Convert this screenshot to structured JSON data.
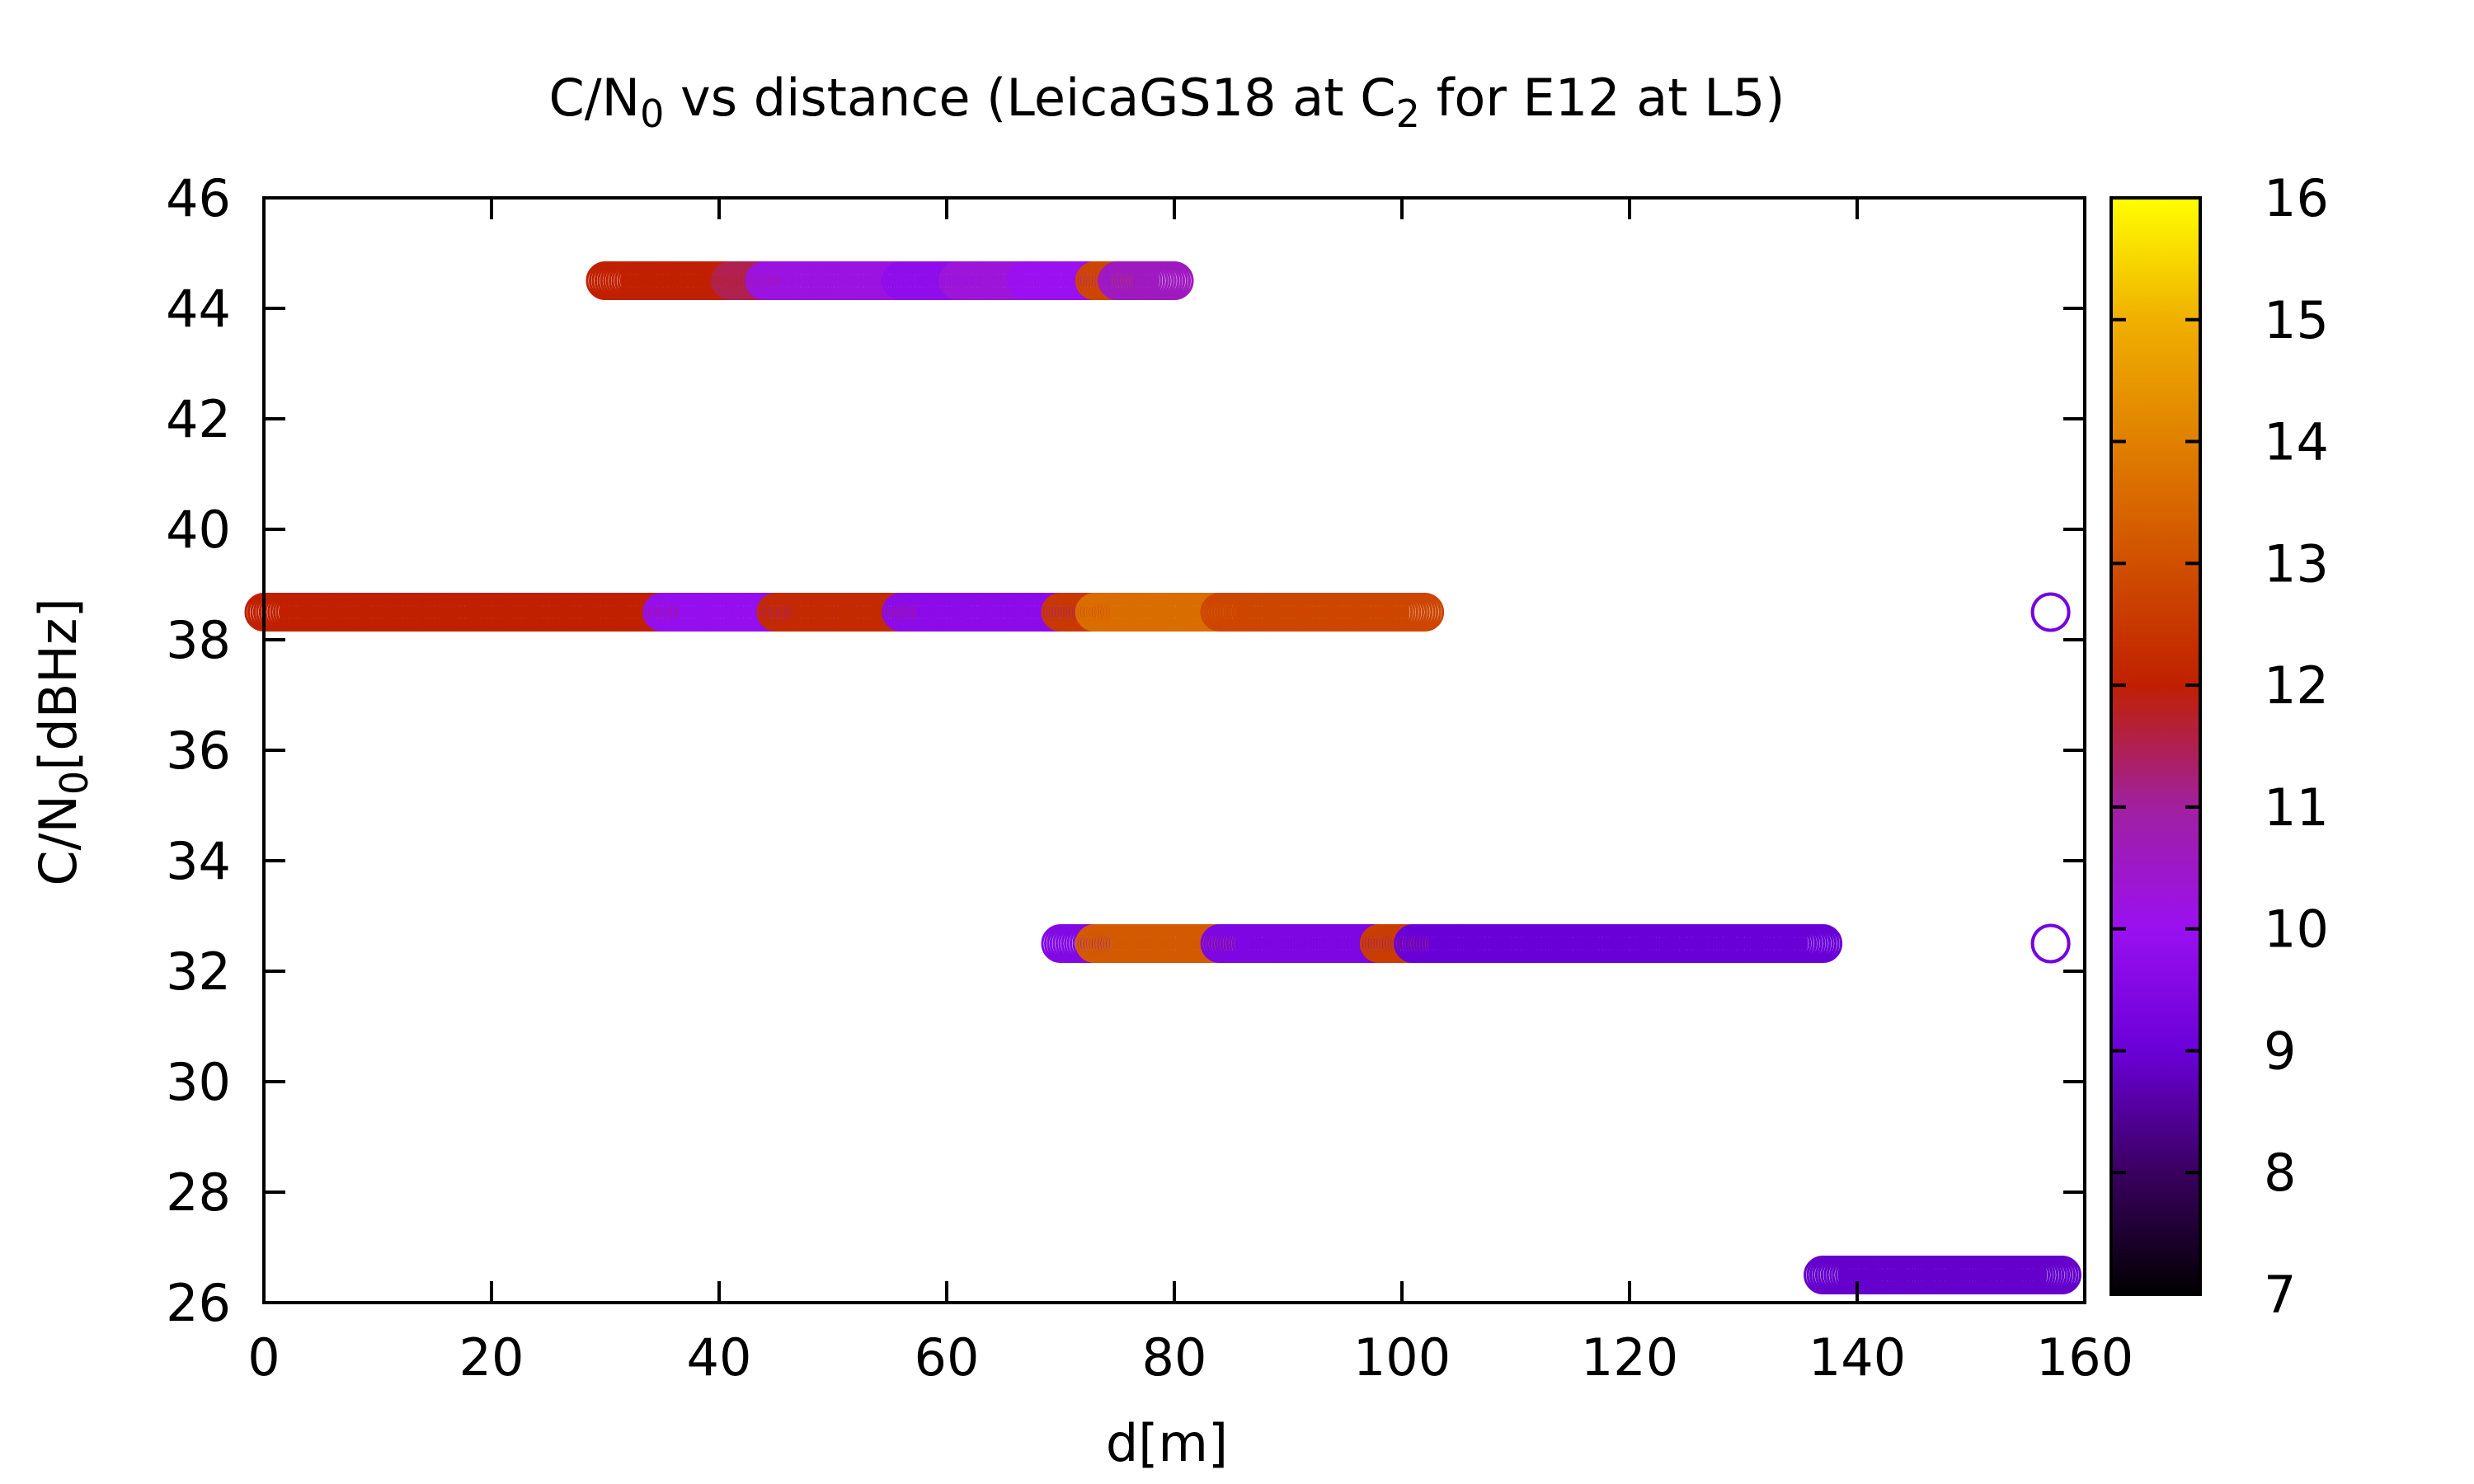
{
  "chart_data": {
    "type": "scatter",
    "title": {
      "pre": "C/N",
      "sub1": "0",
      "mid": " vs distance (LeicaGS18 at C",
      "sub2": "2",
      "post": " for E12 at L5)"
    },
    "xlabel": "d[m]",
    "ylabel": {
      "pre": "C/N",
      "sub": "0",
      "post": "[dBHz]"
    },
    "xlim": [
      0,
      160
    ],
    "ylim": [
      26,
      46
    ],
    "x_ticks": [
      "0",
      "20",
      "40",
      "60",
      "80",
      "100",
      "120",
      "140",
      "160"
    ],
    "y_ticks": [
      "26",
      "28",
      "30",
      "32",
      "34",
      "36",
      "38",
      "40",
      "42",
      "44",
      "46"
    ],
    "colorbar": {
      "range": [
        7,
        16
      ],
      "ticks": [
        "7",
        "8",
        "9",
        "10",
        "11",
        "12",
        "13",
        "14",
        "15",
        "16"
      ],
      "palette": [
        "#000000",
        "#3a0060",
        "#6a00d8",
        "#9a10f0",
        "#a020a0",
        "#c02000",
        "#d05000",
        "#e08000",
        "#f0b000",
        "#ffff00"
      ]
    },
    "series": [
      {
        "y": 44.5,
        "segments": [
          {
            "x": [
              30,
              44
            ],
            "c": 12.0
          },
          {
            "x": [
              41,
              44
            ],
            "c": 11.5
          },
          {
            "x": [
              44,
              56
            ],
            "c": 10.2
          },
          {
            "x": [
              56,
              61
            ],
            "c": 9.8
          },
          {
            "x": [
              61,
              67
            ],
            "c": 10.3
          },
          {
            "x": [
              67,
              73
            ],
            "c": 10.0
          },
          {
            "x": [
              73,
              75
            ],
            "c": 12.8
          },
          {
            "x": [
              75,
              80
            ],
            "c": 10.6
          }
        ]
      },
      {
        "y": 38.5,
        "segments": [
          {
            "x": [
              0,
              35
            ],
            "c": 12.0
          },
          {
            "x": [
              35,
              45
            ],
            "c": 9.9
          },
          {
            "x": [
              45,
              56
            ],
            "c": 12.2
          },
          {
            "x": [
              56,
              70
            ],
            "c": 9.7
          },
          {
            "x": [
              70,
              73
            ],
            "c": 12.5
          },
          {
            "x": [
              73,
              84
            ],
            "c": 13.6
          },
          {
            "x": [
              84,
              102
            ],
            "c": 12.8
          }
        ]
      },
      {
        "y": 32.5,
        "segments": [
          {
            "x": [
              70,
              73
            ],
            "c": 9.5
          },
          {
            "x": [
              73,
              84
            ],
            "c": 13.2
          },
          {
            "x": [
              84,
              98
            ],
            "c": 9.4
          },
          {
            "x": [
              98,
              101
            ],
            "c": 12.6
          },
          {
            "x": [
              101,
              137
            ],
            "c": 9.0
          }
        ]
      },
      {
        "y": 26.5,
        "segments": [
          {
            "x": [
              137,
              158
            ],
            "c": 8.9
          }
        ]
      }
    ],
    "outliers": [
      {
        "x": 157,
        "y": 38.5,
        "c": 9.2
      },
      {
        "x": 157,
        "y": 32.5,
        "c": 9.2
      }
    ]
  }
}
